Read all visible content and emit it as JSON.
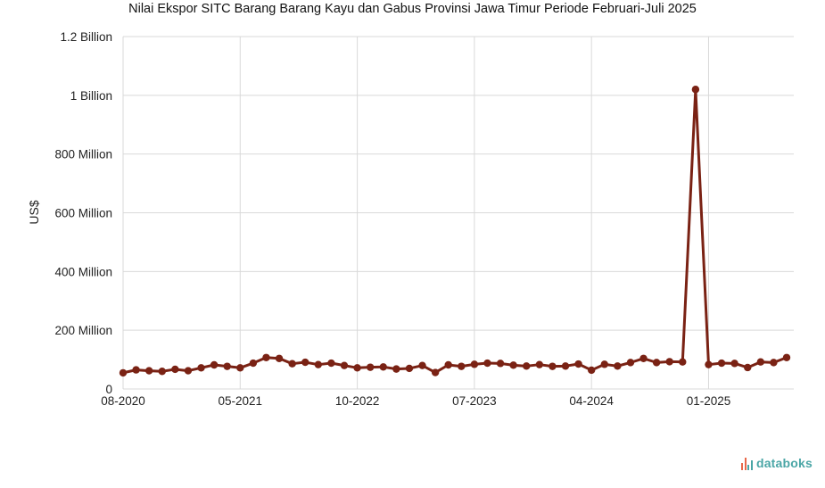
{
  "chart_data": {
    "type": "line",
    "title": "Nilai Ekspor SITC Barang Barang Kayu dan Gabus Provinsi Jawa Timur Periode Februari-Juli 2025",
    "ylabel": "US$",
    "xlabel": "",
    "ylim": [
      0,
      1200000000
    ],
    "yticks": [
      {
        "value": 0,
        "label": "0"
      },
      {
        "value": 200000000,
        "label": "200 Million"
      },
      {
        "value": 400000000,
        "label": "400 Million"
      },
      {
        "value": 600000000,
        "label": "600 Million"
      },
      {
        "value": 800000000,
        "label": "800 Million"
      },
      {
        "value": 1000000000,
        "label": "1 Billion"
      },
      {
        "value": 1200000000,
        "label": "1.2 Billion"
      }
    ],
    "xticks": [
      "08-2020",
      "05-2021",
      "10-2022",
      "07-2023",
      "04-2024",
      "01-2025"
    ],
    "grid": true,
    "line_color": "#7a2214",
    "values": [
      55000000,
      65000000,
      62000000,
      60000000,
      67000000,
      62000000,
      72000000,
      82000000,
      77000000,
      72000000,
      88000000,
      107000000,
      104000000,
      86000000,
      91000000,
      83000000,
      88000000,
      80000000,
      72000000,
      74000000,
      75000000,
      68000000,
      70000000,
      80000000,
      56000000,
      82000000,
      77000000,
      84000000,
      88000000,
      87000000,
      81000000,
      78000000,
      83000000,
      77000000,
      78000000,
      85000000,
      64000000,
      84000000,
      78000000,
      90000000,
      104000000,
      90000000,
      93000000,
      92000000,
      1020000000,
      83000000,
      88000000,
      87000000,
      73000000,
      92000000,
      90000000,
      107000000
    ]
  },
  "brand": {
    "name": "databoks"
  }
}
